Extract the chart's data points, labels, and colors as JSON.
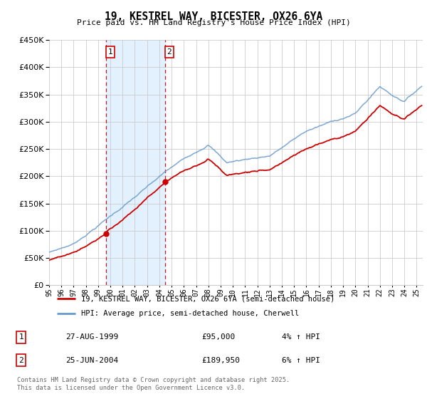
{
  "title": "19, KESTREL WAY, BICESTER, OX26 6YA",
  "subtitle": "Price paid vs. HM Land Registry's House Price Index (HPI)",
  "ylim": [
    0,
    450000
  ],
  "sale1_date": "27-AUG-1999",
  "sale1_price": 95000,
  "sale1_year": 1999.65,
  "sale1_pct": "4%",
  "sale2_date": "25-JUN-2004",
  "sale2_price": 189950,
  "sale2_year": 2004.46,
  "sale2_pct": "6%",
  "legend1": "19, KESTREL WAY, BICESTER, OX26 6YA (semi-detached house)",
  "legend2": "HPI: Average price, semi-detached house, Cherwell",
  "footer": "Contains HM Land Registry data © Crown copyright and database right 2025.\nThis data is licensed under the Open Government Licence v3.0.",
  "line_color_red": "#cc0000",
  "line_color_blue": "#6699cc",
  "shaded_color": "#ddeeff",
  "vline_color": "#cc0000",
  "bg_color": "#ffffff",
  "grid_color": "#cccccc",
  "box_color": "#cc0000",
  "xmin": 1995,
  "xmax": 2025.5
}
